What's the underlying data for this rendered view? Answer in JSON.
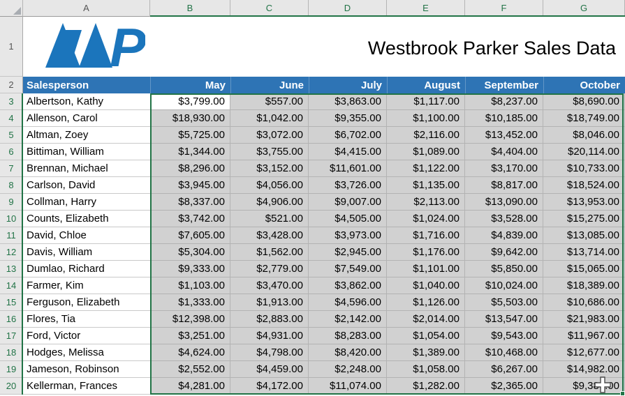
{
  "title": "Westbrook Parker Sales Data",
  "branding": {
    "logo_text": "WP"
  },
  "sheet": {
    "column_letters": [
      "A",
      "B",
      "C",
      "D",
      "E",
      "F",
      "G"
    ],
    "row_numbers": [
      "1",
      "2",
      "3",
      "4",
      "5",
      "6",
      "7",
      "8",
      "9",
      "10",
      "11",
      "12",
      "13",
      "14",
      "15",
      "16",
      "17",
      "18",
      "19",
      "20"
    ],
    "selected_columns": [
      "B",
      "C",
      "D",
      "E",
      "F",
      "G"
    ],
    "selected_rows_from": 3,
    "selected_rows_to": 20,
    "selection": {
      "active_cell": "B3",
      "range": "B3:G20"
    }
  },
  "table": {
    "headers": [
      "Salesperson",
      "May",
      "June",
      "July",
      "August",
      "September",
      "October"
    ],
    "rows": [
      {
        "name": "Albertson, Kathy",
        "values": [
          "$3,799.00",
          "$557.00",
          "$3,863.00",
          "$1,117.00",
          "$8,237.00",
          "$8,690.00"
        ]
      },
      {
        "name": "Allenson, Carol",
        "values": [
          "$18,930.00",
          "$1,042.00",
          "$9,355.00",
          "$1,100.00",
          "$10,185.00",
          "$18,749.00"
        ]
      },
      {
        "name": "Altman, Zoey",
        "values": [
          "$5,725.00",
          "$3,072.00",
          "$6,702.00",
          "$2,116.00",
          "$13,452.00",
          "$8,046.00"
        ]
      },
      {
        "name": "Bittiman, William",
        "values": [
          "$1,344.00",
          "$3,755.00",
          "$4,415.00",
          "$1,089.00",
          "$4,404.00",
          "$20,114.00"
        ]
      },
      {
        "name": "Brennan, Michael",
        "values": [
          "$8,296.00",
          "$3,152.00",
          "$11,601.00",
          "$1,122.00",
          "$3,170.00",
          "$10,733.00"
        ]
      },
      {
        "name": "Carlson, David",
        "values": [
          "$3,945.00",
          "$4,056.00",
          "$3,726.00",
          "$1,135.00",
          "$8,817.00",
          "$18,524.00"
        ]
      },
      {
        "name": "Collman, Harry",
        "values": [
          "$8,337.00",
          "$4,906.00",
          "$9,007.00",
          "$2,113.00",
          "$13,090.00",
          "$13,953.00"
        ]
      },
      {
        "name": "Counts, Elizabeth",
        "values": [
          "$3,742.00",
          "$521.00",
          "$4,505.00",
          "$1,024.00",
          "$3,528.00",
          "$15,275.00"
        ]
      },
      {
        "name": "David, Chloe",
        "values": [
          "$7,605.00",
          "$3,428.00",
          "$3,973.00",
          "$1,716.00",
          "$4,839.00",
          "$13,085.00"
        ]
      },
      {
        "name": "Davis, William",
        "values": [
          "$5,304.00",
          "$1,562.00",
          "$2,945.00",
          "$1,176.00",
          "$9,642.00",
          "$13,714.00"
        ]
      },
      {
        "name": "Dumlao, Richard",
        "values": [
          "$9,333.00",
          "$2,779.00",
          "$7,549.00",
          "$1,101.00",
          "$5,850.00",
          "$15,065.00"
        ]
      },
      {
        "name": "Farmer, Kim",
        "values": [
          "$1,103.00",
          "$3,470.00",
          "$3,862.00",
          "$1,040.00",
          "$10,024.00",
          "$18,389.00"
        ]
      },
      {
        "name": "Ferguson, Elizabeth",
        "values": [
          "$1,333.00",
          "$1,913.00",
          "$4,596.00",
          "$1,126.00",
          "$5,503.00",
          "$10,686.00"
        ]
      },
      {
        "name": "Flores, Tia",
        "values": [
          "$12,398.00",
          "$2,883.00",
          "$2,142.00",
          "$2,014.00",
          "$13,547.00",
          "$21,983.00"
        ]
      },
      {
        "name": "Ford, Victor",
        "values": [
          "$3,251.00",
          "$4,931.00",
          "$8,283.00",
          "$1,054.00",
          "$9,543.00",
          "$11,967.00"
        ]
      },
      {
        "name": "Hodges, Melissa",
        "values": [
          "$4,624.00",
          "$4,798.00",
          "$8,420.00",
          "$1,389.00",
          "$10,468.00",
          "$12,677.00"
        ]
      },
      {
        "name": "Jameson, Robinson",
        "values": [
          "$2,552.00",
          "$4,459.00",
          "$2,248.00",
          "$1,058.00",
          "$6,267.00",
          "$14,982.00"
        ]
      },
      {
        "name": "Kellerman, Frances",
        "values": [
          "$4,281.00",
          "$4,172.00",
          "$11,074.00",
          "$1,282.00",
          "$2,365.00",
          "$9,386.00"
        ]
      }
    ]
  },
  "colors": {
    "header_bar_blue": "#2E74B5",
    "selection_green": "#217346",
    "selected_cell_fill": "#D1D1D1",
    "logo_blue": "#1B75BC",
    "grid_header_gray": "#E7E7E7"
  }
}
